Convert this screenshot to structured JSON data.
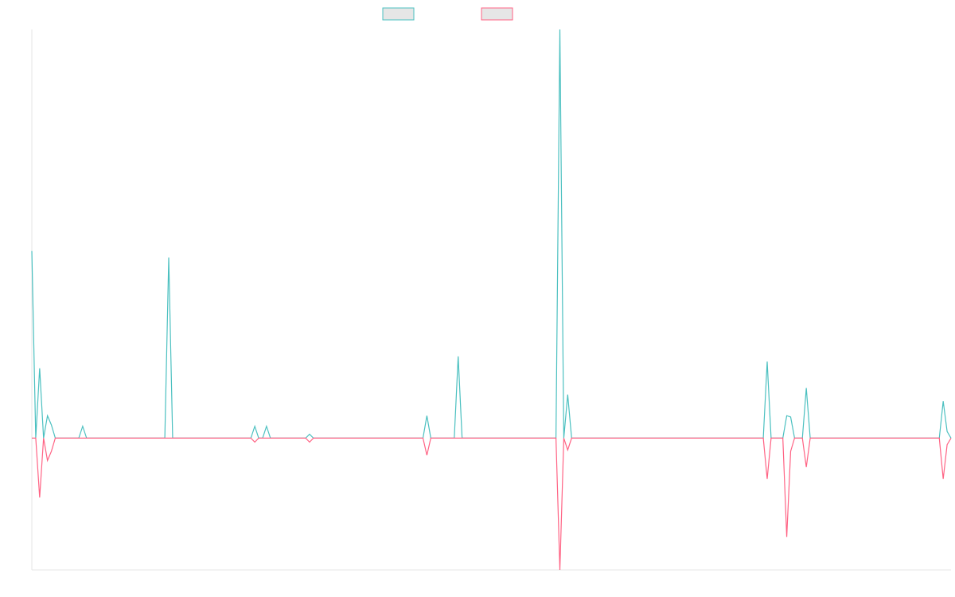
{
  "chart_data": {
    "type": "line",
    "title": "",
    "xlabel": "",
    "ylabel": "",
    "ylim": [
      -100,
      310
    ],
    "x_count": 168,
    "grid": false,
    "legend_position": "top-center",
    "series": [
      {
        "color": "#4bc0c0",
        "fill": "#e6e6e6",
        "points": [
          [
            0,
            142
          ],
          [
            1,
            0
          ],
          [
            2,
            53
          ],
          [
            3,
            0
          ],
          [
            4,
            17
          ],
          [
            5,
            10
          ],
          [
            6,
            0
          ],
          [
            12,
            0
          ],
          [
            13,
            9
          ],
          [
            14,
            0
          ],
          [
            34,
            0
          ],
          [
            35,
            137
          ],
          [
            36,
            0
          ],
          [
            56,
            0
          ],
          [
            57,
            9
          ],
          [
            58,
            0
          ],
          [
            59,
            0
          ],
          [
            60,
            9
          ],
          [
            61,
            0
          ],
          [
            70,
            0
          ],
          [
            71,
            3
          ],
          [
            72,
            0
          ],
          [
            100,
            0
          ],
          [
            101,
            17
          ],
          [
            102,
            0
          ],
          [
            108,
            0
          ],
          [
            109,
            62
          ],
          [
            110,
            0
          ],
          [
            134,
            0
          ],
          [
            135,
            310
          ],
          [
            136,
            0
          ],
          [
            137,
            33
          ],
          [
            138,
            0
          ],
          [
            187,
            0
          ],
          [
            188,
            58
          ],
          [
            189,
            0
          ],
          [
            192,
            0
          ],
          [
            193,
            17
          ],
          [
            194,
            16
          ],
          [
            195,
            0
          ],
          [
            197,
            0
          ],
          [
            198,
            38
          ],
          [
            199,
            0
          ],
          [
            232,
            0
          ],
          [
            233,
            28
          ],
          [
            234,
            5
          ],
          [
            235,
            0
          ]
        ]
      },
      {
        "color": "#ff6384",
        "fill": "#e6e6e6",
        "points": [
          [
            0,
            0
          ],
          [
            1,
            0
          ],
          [
            2,
            -45
          ],
          [
            3,
            0
          ],
          [
            4,
            -17
          ],
          [
            5,
            -10
          ],
          [
            6,
            0
          ],
          [
            56,
            0
          ],
          [
            57,
            -3
          ],
          [
            58,
            0
          ],
          [
            70,
            0
          ],
          [
            71,
            -3
          ],
          [
            72,
            0
          ],
          [
            100,
            0
          ],
          [
            101,
            -13
          ],
          [
            102,
            0
          ],
          [
            134,
            0
          ],
          [
            135,
            -100
          ],
          [
            136,
            0
          ],
          [
            137,
            -9
          ],
          [
            138,
            0
          ],
          [
            187,
            0
          ],
          [
            188,
            -31
          ],
          [
            189,
            0
          ],
          [
            192,
            0
          ],
          [
            193,
            -75
          ],
          [
            194,
            -10
          ],
          [
            195,
            0
          ],
          [
            197,
            0
          ],
          [
            198,
            -22
          ],
          [
            199,
            0
          ],
          [
            232,
            0
          ],
          [
            233,
            -31
          ],
          [
            234,
            -5
          ],
          [
            235,
            0
          ]
        ]
      }
    ]
  }
}
